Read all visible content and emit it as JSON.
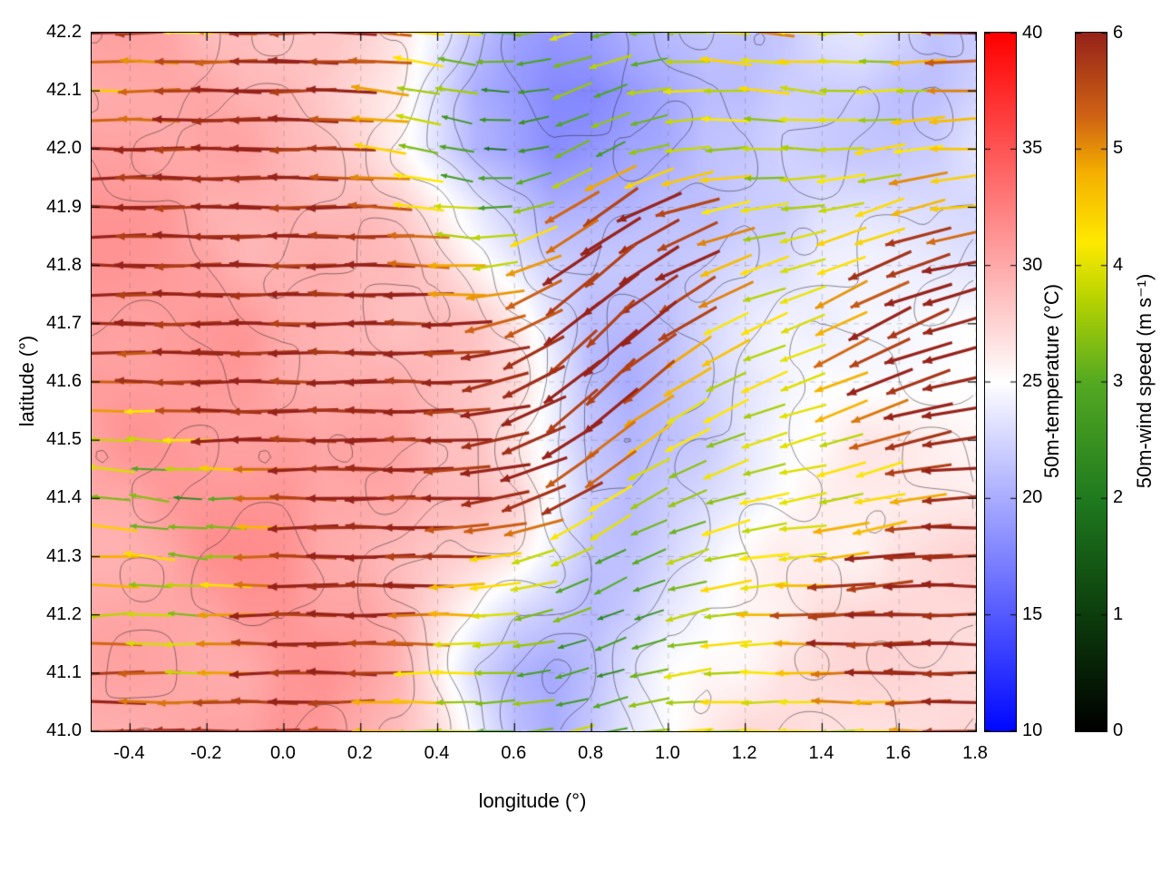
{
  "figure": {
    "background": "#ffffff",
    "plot_border_color": "#000000",
    "contour_color": "#2a2a2a"
  },
  "chart_data": {
    "type": "heatmap",
    "subtype": "temperature field with wind vector (quiver) overlay and terrain contours",
    "xlabel": "longitude (°)",
    "ylabel": "latitude (°)",
    "xlim": [
      -0.5,
      1.8
    ],
    "ylim": [
      41.0,
      42.2
    ],
    "grid": true,
    "x_ticks": [
      -0.4,
      -0.2,
      0.0,
      0.2,
      0.4,
      0.6,
      0.8,
      1.0,
      1.2,
      1.4,
      1.6,
      1.8
    ],
    "x_tick_labels": [
      "-0.4",
      "-0.2",
      "0.0",
      "0.2",
      "0.4",
      "0.6",
      "0.8",
      "1.0",
      "1.2",
      "1.4",
      "1.6",
      "1.8"
    ],
    "y_ticks": [
      41.0,
      41.1,
      41.2,
      41.3,
      41.4,
      41.5,
      41.6,
      41.7,
      41.8,
      41.9,
      42.0,
      42.1,
      42.2
    ],
    "y_tick_labels": [
      "41.0",
      "41.1",
      "41.2",
      "41.3",
      "41.4",
      "41.5",
      "41.6",
      "41.7",
      "41.8",
      "41.9",
      "42.0",
      "42.1",
      "42.2"
    ],
    "colorbars": [
      {
        "id": "temperature",
        "label": "50m-temperature (°C)",
        "range": [
          10,
          40
        ],
        "ticks": [
          10,
          15,
          20,
          25,
          30,
          35,
          40
        ],
        "tick_labels": [
          "10",
          "15",
          "20",
          "25",
          "30",
          "35",
          "40"
        ],
        "stops": [
          {
            "t": 0.0,
            "color": "#0008ff"
          },
          {
            "t": 0.5,
            "color": "#ffffff"
          },
          {
            "t": 1.0,
            "color": "#ff0000"
          }
        ]
      },
      {
        "id": "wind-speed",
        "label": "50m-wind speed (m s⁻¹)",
        "range": [
          0,
          6
        ],
        "ticks": [
          0,
          1,
          2,
          3,
          4,
          5,
          6
        ],
        "tick_labels": [
          "0",
          "1",
          "2",
          "3",
          "4",
          "5",
          "6"
        ],
        "stops": [
          {
            "t": 0.0,
            "color": "#000000"
          },
          {
            "t": 0.17,
            "color": "#0d3f0d"
          },
          {
            "t": 0.33,
            "color": "#1f7a1f"
          },
          {
            "t": 0.5,
            "color": "#55aa22"
          },
          {
            "t": 0.62,
            "color": "#b8d400"
          },
          {
            "t": 0.7,
            "color": "#ffea00"
          },
          {
            "t": 0.8,
            "color": "#f5b000"
          },
          {
            "t": 0.88,
            "color": "#d06414"
          },
          {
            "t": 1.0,
            "color": "#96231a"
          }
        ]
      }
    ],
    "temperature_field": {
      "units": "°C",
      "lon_start": -0.5,
      "lon_step": 0.1,
      "lat_start": 42.2,
      "lat_step": -0.1,
      "values": [
        [
          30,
          30,
          30,
          29,
          29,
          28,
          28,
          27,
          26,
          24,
          22,
          20,
          19,
          19,
          20,
          21,
          22,
          22,
          22,
          23,
          23,
          22,
          21,
          22
        ],
        [
          30,
          30,
          30,
          30,
          29,
          29,
          28,
          27,
          26,
          23,
          20,
          19,
          18,
          18,
          19,
          20,
          21,
          21,
          22,
          22,
          22,
          21,
          21,
          22
        ],
        [
          31,
          31,
          30,
          30,
          30,
          29,
          29,
          28,
          26,
          23,
          20,
          19,
          18,
          19,
          20,
          20,
          21,
          21,
          22,
          22,
          22,
          22,
          22,
          23
        ],
        [
          31,
          31,
          31,
          30,
          30,
          30,
          29,
          29,
          28,
          26,
          24,
          22,
          20,
          20,
          20,
          21,
          21,
          22,
          22,
          23,
          23,
          23,
          23,
          23
        ],
        [
          31,
          31,
          31,
          31,
          30,
          30,
          30,
          29,
          29,
          28,
          26,
          24,
          22,
          21,
          21,
          21,
          22,
          23,
          23,
          24,
          24,
          24,
          24,
          24
        ],
        [
          31,
          31,
          31,
          31,
          31,
          30,
          30,
          30,
          29,
          29,
          28,
          26,
          23,
          21,
          21,
          21,
          22,
          23,
          24,
          24,
          25,
          25,
          25,
          25
        ],
        [
          31,
          31,
          31,
          31,
          31,
          30,
          30,
          30,
          30,
          29,
          28,
          27,
          24,
          21,
          20,
          21,
          22,
          23,
          24,
          25,
          25,
          25,
          25,
          25
        ],
        [
          30,
          31,
          31,
          31,
          31,
          31,
          30,
          30,
          30,
          29,
          29,
          27,
          24,
          21,
          20,
          21,
          22,
          24,
          25,
          25,
          26,
          26,
          26,
          26
        ],
        [
          30,
          30,
          31,
          31,
          31,
          31,
          30,
          30,
          30,
          29,
          29,
          28,
          25,
          22,
          21,
          22,
          23,
          24,
          25,
          26,
          26,
          26,
          26,
          26
        ],
        [
          30,
          30,
          30,
          31,
          31,
          31,
          30,
          30,
          29,
          28,
          27,
          26,
          24,
          22,
          22,
          23,
          24,
          25,
          26,
          26,
          26,
          27,
          27,
          27
        ],
        [
          30,
          30,
          30,
          30,
          31,
          31,
          30,
          30,
          29,
          27,
          25,
          23,
          22,
          21,
          22,
          24,
          25,
          26,
          26,
          27,
          27,
          27,
          27,
          27
        ],
        [
          30,
          30,
          30,
          30,
          30,
          31,
          31,
          30,
          29,
          26,
          23,
          21,
          20,
          21,
          23,
          25,
          26,
          26,
          27,
          27,
          27,
          27,
          27,
          27
        ],
        [
          30,
          30,
          30,
          30,
          30,
          31,
          31,
          30,
          29,
          27,
          24,
          21,
          20,
          22,
          24,
          25,
          26,
          27,
          27,
          27,
          27,
          27,
          27,
          27
        ]
      ]
    },
    "wind_field": {
      "speed_units": "m s⁻¹",
      "direction_convention": "degrees CCW from east; arrow points toward this direction (180 = westward)",
      "lon_start": -0.5,
      "lon_step": 0.1,
      "lat_start": 42.2,
      "lat_step": -0.1,
      "speed": [
        [
          6,
          6,
          5,
          4,
          6,
          6,
          6,
          6,
          5,
          4,
          3.5,
          3,
          3.5,
          4,
          3,
          3,
          4,
          4.5,
          5,
          4,
          4,
          3.5,
          6,
          6
        ],
        [
          5,
          4,
          6,
          6,
          6,
          6,
          6,
          6,
          4,
          3.5,
          3,
          2,
          3,
          3.5,
          3,
          4,
          4,
          4,
          4,
          4,
          3.5,
          4,
          4,
          6
        ],
        [
          6,
          6,
          6,
          6,
          6,
          6,
          6,
          5,
          4,
          3,
          2,
          2,
          3,
          3,
          3,
          3.5,
          4,
          3.5,
          3.5,
          4,
          4,
          4,
          5,
          4
        ],
        [
          6,
          6,
          6,
          6,
          6,
          6,
          6,
          6,
          5,
          4,
          3,
          3,
          4,
          6,
          6,
          6,
          5,
          4,
          3.5,
          4,
          4,
          4,
          6,
          3
        ],
        [
          6,
          6,
          6,
          6,
          6,
          6,
          6,
          6,
          6,
          5,
          4,
          4,
          6,
          6,
          6,
          6,
          6,
          4,
          4,
          4,
          5,
          6,
          6,
          6
        ],
        [
          6,
          6,
          6,
          6,
          6,
          6,
          6,
          6,
          6,
          6,
          6,
          5,
          6,
          6,
          6,
          6,
          5,
          4,
          4,
          4,
          6,
          6,
          6,
          6
        ],
        [
          6,
          5,
          6,
          6,
          6,
          6,
          6,
          6,
          6,
          6,
          6,
          6,
          6,
          6,
          6,
          5,
          4,
          4,
          4,
          4,
          6,
          6,
          6,
          6
        ],
        [
          4,
          4,
          3,
          6,
          6,
          6,
          6,
          6,
          6,
          6,
          6,
          6,
          6,
          6,
          5,
          4,
          4,
          3.5,
          4,
          4,
          4,
          6,
          6,
          6
        ],
        [
          4,
          3,
          3,
          2,
          4,
          6,
          6,
          6,
          6,
          6,
          6,
          6,
          6,
          5,
          4,
          3,
          3.5,
          4,
          4,
          4,
          4,
          4,
          6,
          6
        ],
        [
          6,
          4,
          4,
          3,
          4,
          6,
          6,
          6,
          6,
          6,
          5,
          4,
          4,
          3,
          3,
          3,
          4,
          4,
          4,
          4,
          6,
          6,
          6,
          6
        ],
        [
          4,
          4,
          3,
          4,
          6,
          6,
          6,
          6,
          6,
          5,
          4,
          4,
          3,
          3,
          2,
          3,
          4,
          4,
          5,
          6,
          6,
          6,
          6,
          6
        ],
        [
          6,
          6,
          4,
          4,
          6,
          6,
          6,
          6,
          5,
          4,
          4,
          3,
          3,
          2,
          3,
          3.5,
          4,
          4,
          4,
          5,
          6,
          6,
          6,
          6
        ],
        [
          6,
          6,
          6,
          6,
          6,
          6,
          6,
          5,
          4,
          4,
          3,
          3,
          4,
          3,
          3,
          4,
          4,
          4,
          4,
          4,
          4,
          4,
          6,
          6
        ]
      ],
      "direction_deg": [
        [
          180,
          182,
          178,
          180,
          180,
          180,
          180,
          178,
          175,
          172,
          175,
          185,
          192,
          198,
          190,
          182,
          176,
          172,
          178,
          182,
          180,
          180,
          180,
          180
        ],
        [
          180,
          180,
          180,
          180,
          180,
          180,
          180,
          176,
          172,
          168,
          172,
          182,
          195,
          205,
          195,
          185,
          180,
          176,
          172,
          176,
          180,
          182,
          184,
          180
        ],
        [
          180,
          180,
          180,
          180,
          180,
          180,
          180,
          176,
          170,
          166,
          170,
          185,
          200,
          210,
          200,
          190,
          185,
          180,
          176,
          180,
          185,
          190,
          185,
          180
        ],
        [
          180,
          180,
          180,
          180,
          180,
          180,
          180,
          180,
          176,
          172,
          176,
          190,
          205,
          215,
          210,
          200,
          195,
          190,
          185,
          190,
          195,
          200,
          190,
          185
        ],
        [
          180,
          180,
          180,
          180,
          180,
          180,
          180,
          180,
          180,
          176,
          180,
          195,
          210,
          220,
          215,
          210,
          205,
          200,
          195,
          200,
          205,
          200,
          195,
          190
        ],
        [
          180,
          180,
          180,
          180,
          180,
          180,
          180,
          180,
          180,
          180,
          185,
          200,
          215,
          225,
          220,
          215,
          210,
          205,
          200,
          205,
          210,
          205,
          200,
          195
        ],
        [
          180,
          180,
          180,
          180,
          180,
          180,
          180,
          180,
          180,
          180,
          185,
          200,
          215,
          225,
          220,
          215,
          210,
          205,
          200,
          200,
          205,
          200,
          195,
          190
        ],
        [
          178,
          175,
          180,
          180,
          180,
          180,
          180,
          180,
          180,
          180,
          185,
          195,
          210,
          220,
          215,
          210,
          205,
          200,
          195,
          195,
          200,
          195,
          190,
          185
        ],
        [
          175,
          170,
          175,
          180,
          180,
          180,
          180,
          180,
          180,
          180,
          185,
          195,
          205,
          215,
          210,
          205,
          200,
          195,
          190,
          190,
          195,
          190,
          185,
          180
        ],
        [
          180,
          175,
          172,
          176,
          180,
          180,
          180,
          180,
          180,
          180,
          185,
          190,
          200,
          210,
          205,
          200,
          195,
          190,
          185,
          185,
          190,
          185,
          180,
          180
        ],
        [
          184,
          180,
          176,
          180,
          180,
          180,
          180,
          180,
          180,
          180,
          180,
          190,
          195,
          205,
          200,
          195,
          190,
          185,
          180,
          180,
          185,
          180,
          180,
          180
        ],
        [
          180,
          180,
          180,
          180,
          180,
          180,
          180,
          180,
          180,
          180,
          180,
          185,
          190,
          200,
          195,
          190,
          185,
          180,
          180,
          180,
          180,
          180,
          180,
          180
        ],
        [
          180,
          180,
          180,
          180,
          180,
          180,
          180,
          180,
          180,
          180,
          180,
          185,
          190,
          195,
          190,
          185,
          180,
          180,
          180,
          180,
          180,
          180,
          180,
          180
        ]
      ]
    }
  }
}
